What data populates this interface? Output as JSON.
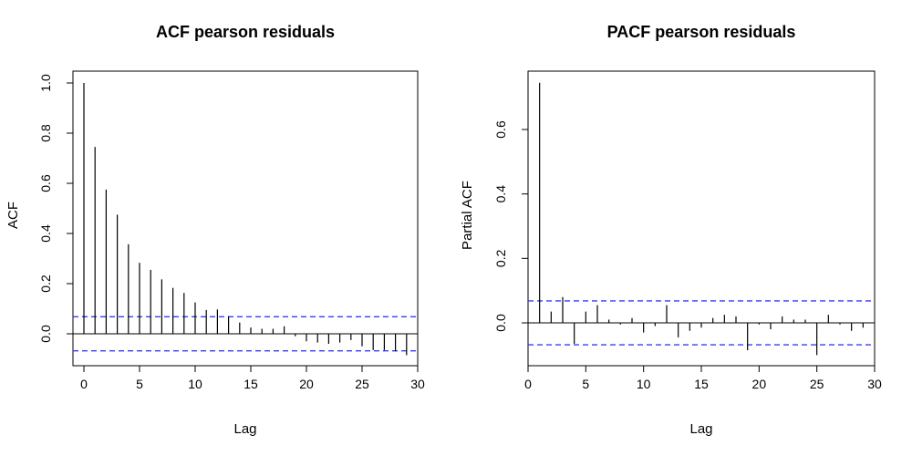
{
  "chart_data": [
    {
      "type": "bar",
      "title": "ACF pearson residuals",
      "xlabel": "Lag",
      "ylabel": "ACF",
      "xlim": [
        0,
        30
      ],
      "ylim": [
        -0.1,
        1.0
      ],
      "xticks": [
        0,
        5,
        10,
        15,
        20,
        25,
        30
      ],
      "yticks": [
        0.0,
        0.2,
        0.4,
        0.6,
        0.8,
        1.0
      ],
      "ytick_labels": [
        "0.0",
        "0.2",
        "0.4",
        "0.6",
        "0.8",
        "1.0"
      ],
      "confidence": 0.068,
      "line_color": "#000000",
      "conf_color": "#3a3aff",
      "lags": [
        0,
        1,
        2,
        3,
        4,
        5,
        6,
        7,
        8,
        9,
        10,
        11,
        12,
        13,
        14,
        15,
        16,
        17,
        18,
        19,
        20,
        21,
        22,
        23,
        24,
        25,
        26,
        27,
        28,
        29
      ],
      "values": [
        1.0,
        0.745,
        0.575,
        0.475,
        0.357,
        0.283,
        0.255,
        0.217,
        0.183,
        0.163,
        0.125,
        0.095,
        0.097,
        0.07,
        0.045,
        0.025,
        0.02,
        0.02,
        0.03,
        -0.01,
        -0.03,
        -0.035,
        -0.04,
        -0.035,
        -0.025,
        -0.05,
        -0.065,
        -0.065,
        -0.07,
        -0.085
      ]
    },
    {
      "type": "bar",
      "title": "PACF pearson residuals",
      "xlabel": "Lag",
      "ylabel": "Partial ACF",
      "xlim": [
        0,
        30
      ],
      "ylim": [
        -0.13,
        0.75
      ],
      "xticks": [
        0,
        5,
        10,
        15,
        20,
        25,
        30
      ],
      "yticks": [
        0.0,
        0.2,
        0.4,
        0.6
      ],
      "ytick_labels": [
        "0.0",
        "0.2",
        "0.4",
        "0.6"
      ],
      "confidence": 0.068,
      "line_color": "#000000",
      "conf_color": "#3a3aff",
      "lags": [
        1,
        2,
        3,
        4,
        5,
        6,
        7,
        8,
        9,
        10,
        11,
        12,
        13,
        14,
        15,
        16,
        17,
        18,
        19,
        20,
        21,
        22,
        23,
        24,
        25,
        26,
        27,
        28,
        29
      ],
      "values": [
        0.745,
        0.035,
        0.08,
        -0.065,
        0.035,
        0.055,
        0.01,
        -0.005,
        0.015,
        -0.03,
        -0.01,
        0.055,
        -0.045,
        -0.025,
        -0.015,
        0.015,
        0.025,
        0.02,
        -0.085,
        -0.005,
        -0.02,
        0.02,
        0.01,
        0.01,
        -0.1,
        0.025,
        -0.005,
        -0.025,
        -0.015
      ]
    }
  ]
}
